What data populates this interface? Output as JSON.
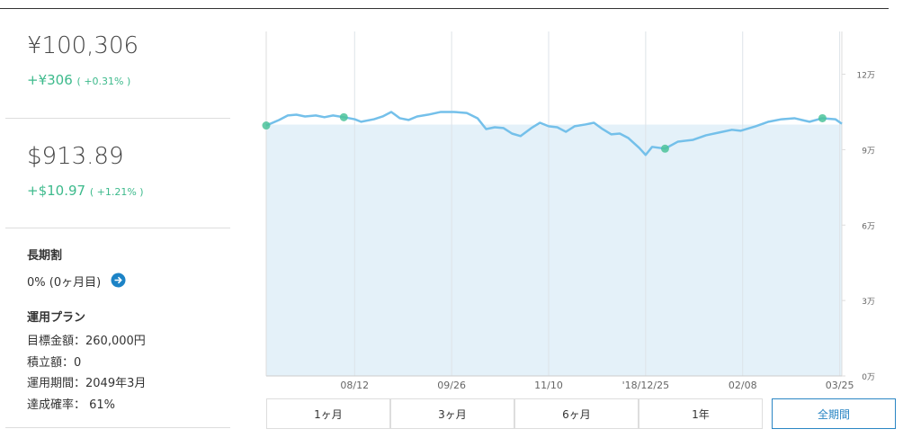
{
  "summary": {
    "jpy": {
      "amount": "¥100,306",
      "change": "+¥306",
      "change_pct": "( +0.31% )"
    },
    "usd": {
      "amount": "$913.89",
      "change": "+$10.97",
      "change_pct": "( +1.21% )"
    }
  },
  "long_term": {
    "title": "長期割",
    "value": "0% (0ヶ月目)"
  },
  "plan": {
    "title": "運用プラン",
    "items": [
      "目標金額：260,000円",
      "積立額：0",
      "運用期間：2049年3月",
      "達成確率： 61%"
    ]
  },
  "range_buttons": [
    "1ヶ月",
    "3ヶ月",
    "6ヶ月",
    "1年",
    "全期間"
  ],
  "chart_data": {
    "type": "line",
    "xlim": [
      0,
      267
    ],
    "xticks": [
      {
        "value": 41,
        "label": "08/12"
      },
      {
        "value": 86,
        "label": "09/26"
      },
      {
        "value": 131,
        "label": "11/10"
      },
      {
        "value": 176,
        "label": "'18/12/25"
      },
      {
        "value": 221,
        "label": "02/08"
      },
      {
        "value": 266,
        "label": "03/25"
      }
    ],
    "ylim": [
      0,
      137000
    ],
    "yticks": [
      {
        "value": 0,
        "label": "0万"
      },
      {
        "value": 30000,
        "label": "3万"
      },
      {
        "value": 60000,
        "label": "6万"
      },
      {
        "value": 90000,
        "label": "9万"
      },
      {
        "value": 120000,
        "label": "12万"
      }
    ],
    "series": [
      {
        "color": "#74c0ea",
        "x": [
          0,
          6,
          10,
          14,
          18,
          23,
          27,
          31,
          36,
          41,
          44,
          50,
          54,
          58,
          62,
          66,
          70,
          75,
          81,
          87,
          93,
          98,
          102,
          106,
          110,
          114,
          118,
          123,
          127,
          131,
          135,
          139,
          143,
          148,
          152,
          156,
          160,
          164,
          168,
          173,
          176,
          179,
          185,
          191,
          198,
          204,
          210,
          216,
          220,
          227,
          233,
          239,
          245,
          252,
          258,
          264,
          267
        ],
        "values": [
          99600,
          101800,
          103600,
          103900,
          103200,
          103600,
          102900,
          103600,
          102900,
          102100,
          101100,
          102100,
          103200,
          105000,
          102500,
          101800,
          103200,
          103900,
          105000,
          105000,
          104600,
          102500,
          98200,
          98900,
          98600,
          96400,
          95400,
          98600,
          100700,
          99300,
          98900,
          97100,
          99300,
          100000,
          100700,
          98200,
          96100,
          96400,
          94600,
          90700,
          87900,
          91100,
          90400,
          93200,
          93900,
          95700,
          96800,
          97900,
          97500,
          99300,
          101100,
          102100,
          102500,
          101100,
          102500,
          102100,
          100300
        ]
      },
      {
        "type": "area",
        "color": "#e4f1f9",
        "x": [
          0,
          267
        ],
        "values": [
          100000,
          100000
        ]
      }
    ]
  }
}
